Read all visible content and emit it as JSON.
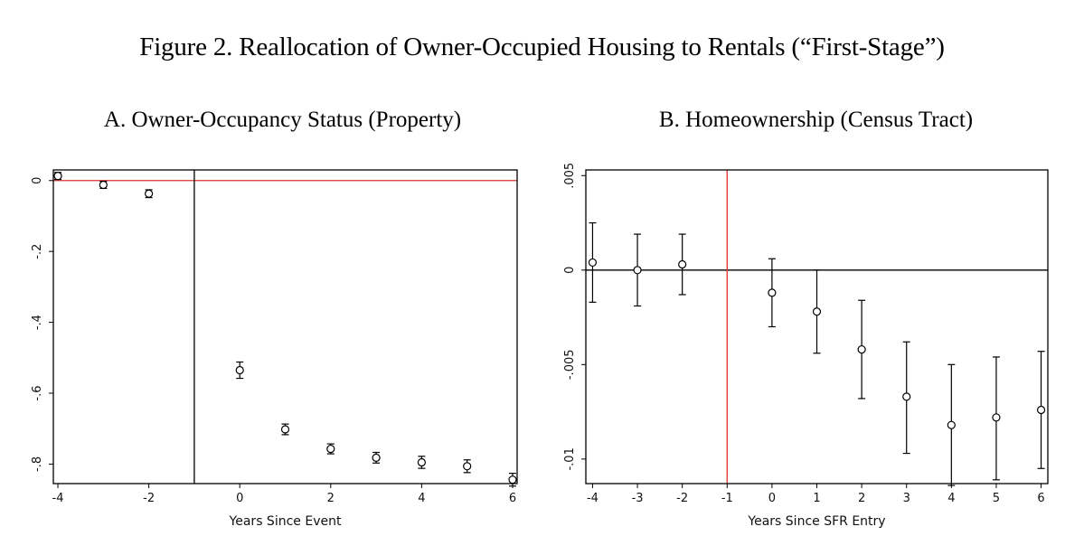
{
  "figure_title": "Figure 2. Reallocation of Owner-Occupied Housing to Rentals (“First-Stage”)",
  "colors": {
    "reference_line": "#e0322a",
    "marker": "#000000",
    "frame": "#000000"
  },
  "chart_data": [
    {
      "panel": "A",
      "type": "scatter",
      "title": "A. Owner-Occupancy Status (Property)",
      "xlabel": "Years Since Event",
      "ylabel": "",
      "xlim": [
        -4.1,
        6.1
      ],
      "ylim": [
        -0.855,
        0.03
      ],
      "xticks": [
        -4,
        -2,
        0,
        2,
        4,
        6
      ],
      "xtick_labels": [
        "-4",
        "-2",
        "0",
        "2",
        "4",
        "6"
      ],
      "yticks": [
        0,
        -0.2,
        -0.4,
        -0.6,
        -0.8
      ],
      "ytick_labels": [
        "0",
        "-.2",
        "-.4",
        "-.6",
        "-.8"
      ],
      "reference_lines": {
        "horizontal_y": 0,
        "horizontal_color": "#e0322a",
        "vertical_x": -1,
        "vertical_color": "#000000"
      },
      "grid": false,
      "legend": "none",
      "points": [
        {
          "x": -4,
          "y": 0.013,
          "lo": 0.003,
          "hi": 0.023
        },
        {
          "x": -3,
          "y": -0.012,
          "lo": -0.022,
          "hi": -0.002
        },
        {
          "x": -2,
          "y": -0.037,
          "lo": -0.048,
          "hi": -0.026
        },
        {
          "x": 0,
          "y": -0.535,
          "lo": -0.558,
          "hi": -0.512
        },
        {
          "x": 1,
          "y": -0.702,
          "lo": -0.717,
          "hi": -0.687
        },
        {
          "x": 2,
          "y": -0.757,
          "lo": -0.771,
          "hi": -0.743
        },
        {
          "x": 3,
          "y": -0.782,
          "lo": -0.797,
          "hi": -0.767
        },
        {
          "x": 4,
          "y": -0.795,
          "lo": -0.812,
          "hi": -0.778
        },
        {
          "x": 5,
          "y": -0.806,
          "lo": -0.824,
          "hi": -0.788
        },
        {
          "x": 6,
          "y": -0.844,
          "lo": -0.862,
          "hi": -0.826
        }
      ]
    },
    {
      "panel": "B",
      "type": "scatter",
      "title": "B. Homeownership (Census Tract)",
      "xlabel": "Years Since SFR Entry",
      "ylabel": "",
      "xlim": [
        -4.15,
        6.15
      ],
      "ylim": [
        -0.0113,
        0.0053
      ],
      "xticks": [
        -4,
        -3,
        -2,
        -1,
        0,
        1,
        2,
        3,
        4,
        5,
        6
      ],
      "xtick_labels": [
        "-4",
        "-3",
        "-2",
        "-1",
        "0",
        "1",
        "2",
        "3",
        "4",
        "5",
        "6"
      ],
      "yticks": [
        0.005,
        0,
        -0.005,
        -0.01
      ],
      "ytick_labels": [
        ".005",
        "0",
        "-.005",
        "-.01"
      ],
      "reference_lines": {
        "horizontal_y": 0,
        "horizontal_color": "#000000",
        "vertical_x": -1,
        "vertical_color": "#e0322a"
      },
      "grid": false,
      "legend": "none",
      "points": [
        {
          "x": -4,
          "y": 0.0004,
          "lo": -0.0017,
          "hi": 0.0025
        },
        {
          "x": -3,
          "y": 0.0,
          "lo": -0.0019,
          "hi": 0.0019
        },
        {
          "x": -2,
          "y": 0.0003,
          "lo": -0.0013,
          "hi": 0.0019
        },
        {
          "x": 0,
          "y": -0.0012,
          "lo": -0.003,
          "hi": 0.0006
        },
        {
          "x": 1,
          "y": -0.0022,
          "lo": -0.0044,
          "hi": 0.0
        },
        {
          "x": 2,
          "y": -0.0042,
          "lo": -0.0068,
          "hi": -0.0016
        },
        {
          "x": 3,
          "y": -0.0067,
          "lo": -0.0097,
          "hi": -0.0038
        },
        {
          "x": 4,
          "y": -0.0082,
          "lo": -0.0114,
          "hi": -0.005
        },
        {
          "x": 5,
          "y": -0.0078,
          "lo": -0.0111,
          "hi": -0.0046
        },
        {
          "x": 6,
          "y": -0.0074,
          "lo": -0.0105,
          "hi": -0.0043
        }
      ]
    }
  ]
}
